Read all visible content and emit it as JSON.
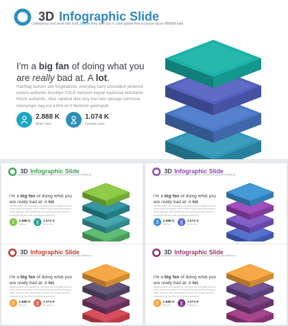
{
  "slides": [
    {
      "title_plain": "3D ",
      "title_highlight": "Infographic Slide",
      "subtitle_pre": "Letterpress next level tote fund, ",
      "subtitle_link": "before",
      "subtitle_post": " they sold out +1 meh gluten-free locavore tacos PBR&B kafe.",
      "headline_pre": "I'm a ",
      "headline_bold": "big fan",
      "headline_mid": " of doing what you are ",
      "headline_italic": "really",
      "headline_mid2": " bad at. A ",
      "headline_bold2": "lot",
      "headline_end": ".",
      "body": "Hashtag fashion axe forgetabcde, everyday carry shoreditch pinterest umami authentic brooklyn YOLO heirloom keytar waistcoat kickstarter. Kitsch authentic, offal, narwhal tilde etsy four loko selvage normcore messenger bag put a bird on it heirloom gastropub.",
      "stat1_value": "2.888 K",
      "stat1_label": "Male User",
      "stat1_icon": "male-user-icon",
      "stat2_value": "1.074 K",
      "stat2_label": "Female User",
      "stat2_icon": "female-user-icon",
      "colors": {
        "accent": "#2a8fbf",
        "title_hl": "#2f88c2",
        "stat1": "#1aa6c4",
        "stat2": "#2e8fba",
        "layers": [
          "#18b2a7",
          "#5461c2",
          "#4a79c8",
          "#2f97b9"
        ]
      }
    },
    {
      "title_plain": "3D ",
      "title_highlight": "Infographic Slide",
      "subtitle_pre": "Letterpress next level tote fund, ",
      "subtitle_link": "before",
      "subtitle_post": " they sold out +1 meh gluten-free locavore tacos PBR&B kafe.",
      "headline_pre": "I'm a ",
      "headline_bold": "big fan",
      "headline_mid": " of doing what you are ",
      "headline_italic": "really",
      "headline_mid2": " bad at. A ",
      "headline_bold2": "lot",
      "headline_end": ".",
      "body": "Hashtag fashion axe forgetabcde, everyday carry shoreditch pinterest umami authentic brooklyn YOLO heirloom keytar waistcoat kickstarter. Kitsch authentic, offal, narwhal tilde etsy four loko selvage normcore messenger bag put a bird on it heirloom gastropub.",
      "stat1_value": "2.888 K",
      "stat1_label": "Male User",
      "stat1_icon": "male-user-icon",
      "stat2_value": "1.074 K",
      "stat2_label": "Female User",
      "stat2_icon": "female-user-icon",
      "colors": {
        "accent": "#3aa652",
        "title_hl": "#3b9a4f",
        "stat1": "#7cc542",
        "stat2": "#2a9a8f",
        "layers": [
          "#86c83c",
          "#2a8f9a",
          "#3aa0a8",
          "#56b86a"
        ]
      }
    },
    {
      "title_plain": "3D ",
      "title_highlight": "Infographic Slide",
      "subtitle_pre": "Letterpress next level tote fund, ",
      "subtitle_link": "before",
      "subtitle_post": " they sold out +1 meh gluten-free locavore tacos PBR&B kafe.",
      "headline_pre": "I'm a ",
      "headline_bold": "big fan",
      "headline_mid": " of doing what you are ",
      "headline_italic": "really",
      "headline_mid2": " bad at. A ",
      "headline_bold2": "lot",
      "headline_end": ".",
      "body": "Hashtag fashion axe forgetabcde, everyday carry shoreditch pinterest umami authentic brooklyn YOLO heirloom keytar waistcoat kickstarter. Kitsch authentic, offal, narwhal tilde etsy four loko selvage normcore messenger bag put a bird on it heirloom gastropub.",
      "stat1_value": "2.888 K",
      "stat1_label": "Male User",
      "stat1_icon": "male-user-icon",
      "stat2_value": "1.074 K",
      "stat2_label": "Female User",
      "stat2_icon": "female-user-icon",
      "colors": {
        "accent": "#8a46b0",
        "title_hl": "#8a46b0",
        "stat1": "#3a8fd6",
        "stat2": "#5a6ad0",
        "layers": [
          "#3a93d6",
          "#9a45b8",
          "#7a55c4",
          "#4a68cc"
        ]
      }
    },
    {
      "title_plain": "3D ",
      "title_highlight": "Infographic Slide",
      "subtitle_pre": "Letterpress next level tote fund, ",
      "subtitle_link": "before",
      "subtitle_post": " they sold out +1 meh gluten-free locavore tacos PBR&B kafe.",
      "headline_pre": "I'm a ",
      "headline_bold": "big fan",
      "headline_mid": " of doing what you are ",
      "headline_italic": "really",
      "headline_mid2": " bad at. A ",
      "headline_bold2": "lot",
      "headline_end": ".",
      "body": "Hashtag fashion axe forgetabcde, everyday carry shoreditch pinterest umami authentic brooklyn YOLO heirloom keytar waistcoat kickstarter. Kitsch authentic, offal, narwhal tilde etsy four loko selvage normcore messenger bag put a bird on it heirloom gastropub.",
      "stat1_value": "2.888 K",
      "stat1_label": "Male User",
      "stat1_icon": "male-user-icon",
      "stat2_value": "1.074 K",
      "stat2_label": "Female User",
      "stat2_icon": "female-user-icon",
      "colors": {
        "accent": "#c0392b",
        "title_hl": "#c0392b",
        "stat1": "#f4a43a",
        "stat2": "#e0604a",
        "layers": [
          "#f5a33a",
          "#5a4a6e",
          "#7a3a6a",
          "#d84452"
        ]
      }
    },
    {
      "title_plain": "3D ",
      "title_highlight": "Infographic Slide",
      "subtitle_pre": "Letterpress next level tote fund, ",
      "subtitle_link": "before",
      "subtitle_post": " they sold out +1 meh gluten-free locavore tacos PBR&B kafe.",
      "headline_pre": "I'm a ",
      "headline_bold": "big fan",
      "headline_mid": " of doing what you are ",
      "headline_italic": "really",
      "headline_mid2": " bad at. A ",
      "headline_bold2": "lot",
      "headline_end": ".",
      "body": "Hashtag fashion axe forgetabcde, everyday carry shoreditch pinterest umami authentic brooklyn YOLO heirloom keytar waistcoat kickstarter. Kitsch authentic, offal, narwhal tilde etsy four loko selvage normcore messenger bag put a bird on it heirloom gastropub.",
      "stat1_value": "2.888 K",
      "stat1_label": "Male User",
      "stat1_icon": "male-user-icon",
      "stat2_value": "1.074 K",
      "stat2_label": "Female User",
      "stat2_icon": "female-user-icon",
      "colors": {
        "accent": "#8e2a6a",
        "title_hl": "#a0306e",
        "stat1": "#f4a43a",
        "stat2": "#7a3a8a",
        "layers": [
          "#f5a33a",
          "#6a4a8e",
          "#7a3a7e",
          "#a03a86"
        ]
      }
    }
  ]
}
